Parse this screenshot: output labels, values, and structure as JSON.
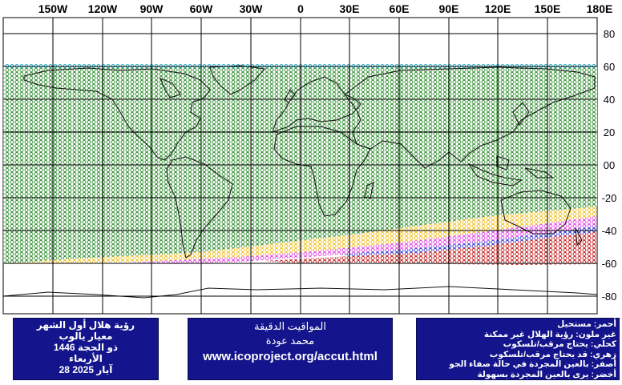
{
  "map": {
    "lon_labels": [
      "150W",
      "120W",
      "90W",
      "60W",
      "30W",
      "0",
      "30E",
      "60E",
      "90E",
      "120E",
      "150E",
      "180E"
    ],
    "lat_labels": [
      "80",
      "60",
      "40",
      "20",
      "00",
      "-20",
      "-40",
      "-60",
      "-80"
    ],
    "zone_colors": {
      "green": "#2e8b2e",
      "yellow": "#f0c020",
      "pink": "#e040e0",
      "blue": "#3030d0",
      "red": "#c01818",
      "cyan": "#20b0c8"
    }
  },
  "left_panel": {
    "line1": "رؤية هلال أول الشهر",
    "line2": "معيار يالوب",
    "line3": "ذو الحجة 1446",
    "line4": "الأربعاء",
    "line5": "آيار 2025 28"
  },
  "middle_panel": {
    "line1": "المواقيت الدقيقة",
    "line2": "محمد عودة",
    "line3": "www.icoproject.org/accut.html"
  },
  "legend": {
    "item1": "أحمر: مستحيل",
    "item2": "غير ملون: رؤية الهلال غير ممكنة",
    "item3": "كحلي: يحتاج مرقب/تلسكوب",
    "item4": "زهري: قد يحتاج مرقب/تلسكوب",
    "item5": "أصفر: بالعين المجردة في حالة صفاء الجو",
    "item6": "أخضر: يرى بالعين المجردة بسهولة"
  }
}
